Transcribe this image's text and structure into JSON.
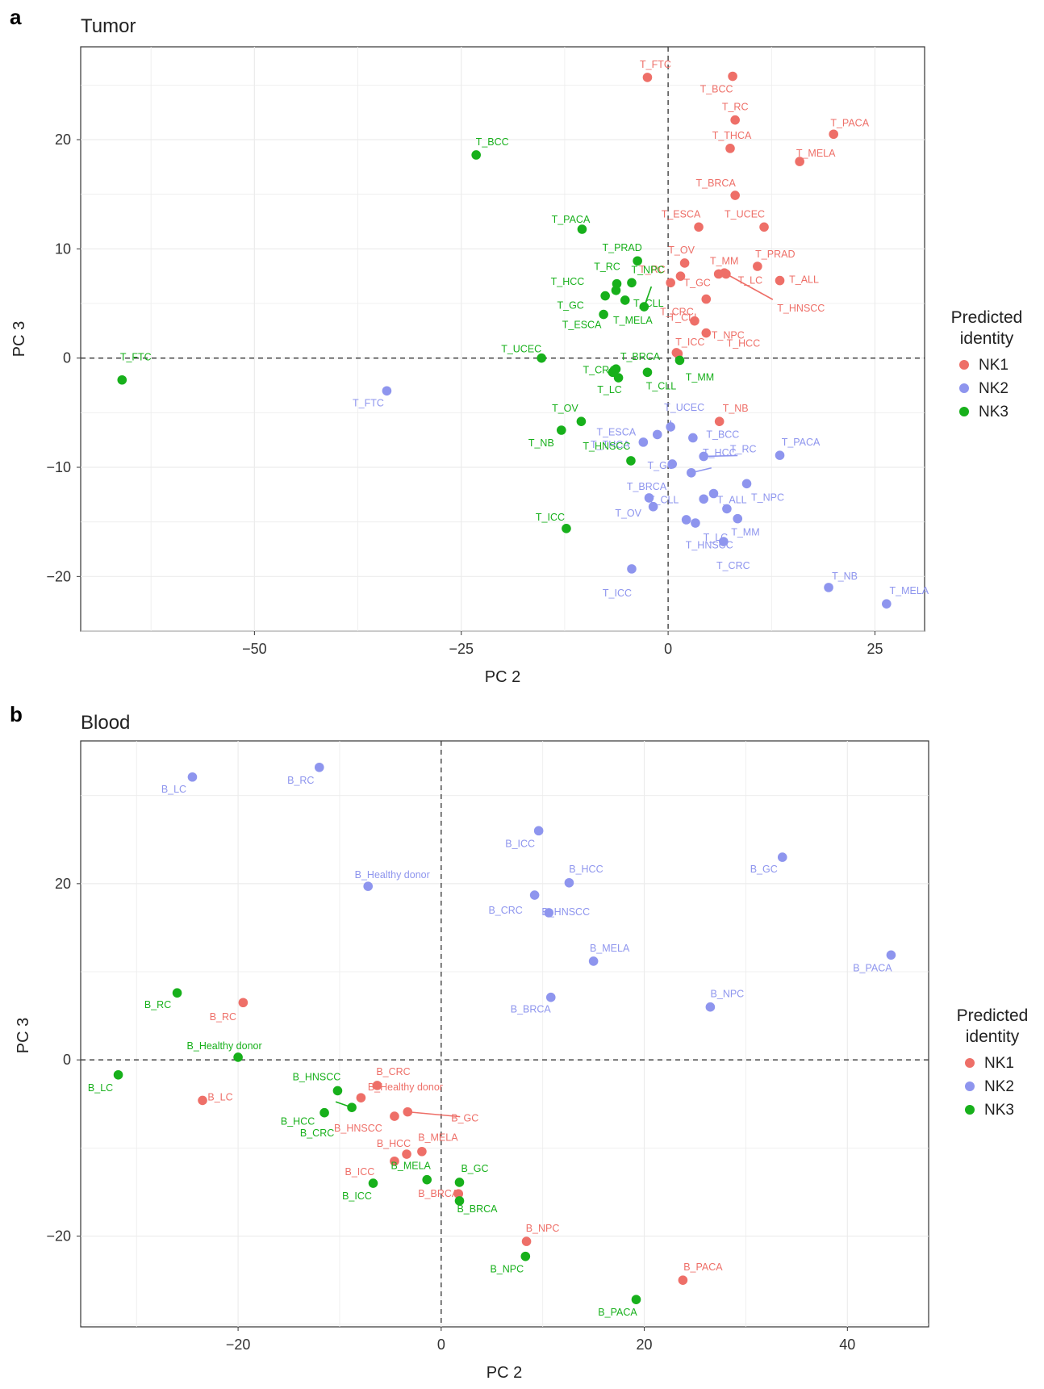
{
  "colors": {
    "NK1": "#ee6f68",
    "NK2": "#8e95ee",
    "NK3": "#17b01b"
  },
  "legend": {
    "title_line1": "Predicted",
    "title_line2": "identity",
    "entries": [
      "NK1",
      "NK2",
      "NK3"
    ]
  },
  "chart_data": [
    {
      "panel_letter": "a",
      "title": "Tumor",
      "type": "scatter",
      "xlabel": "PC 2",
      "ylabel": "PC 3",
      "xlim": [
        -71,
        31
      ],
      "ylim": [
        -25,
        28.5
      ],
      "xticks": [
        -50,
        -25,
        0,
        25
      ],
      "yticks": [
        -20,
        -10,
        0,
        10,
        20
      ],
      "xtick_labels": [
        "−50",
        "−25",
        "0",
        "25"
      ],
      "ytick_labels": [
        "−20",
        "−10",
        "0",
        "10",
        "20"
      ],
      "reference_lines": {
        "x": 0,
        "y": 0
      },
      "grid": true,
      "legend_position": "right",
      "points": [
        {
          "label": "T_FTC",
          "group": "NK1",
          "x": -2.5,
          "y": 25.7
        },
        {
          "label": "T_BCC",
          "group": "NK1",
          "x": 7.8,
          "y": 25.8
        },
        {
          "label": "T_RC",
          "group": "NK1",
          "x": 8.1,
          "y": 21.8
        },
        {
          "label": "T_PACA",
          "group": "NK1",
          "x": 20,
          "y": 20.5
        },
        {
          "label": "T_THCA",
          "group": "NK1",
          "x": 7.5,
          "y": 19.2
        },
        {
          "label": "T_MELA",
          "group": "NK1",
          "x": 15.9,
          "y": 18
        },
        {
          "label": "T_BRCA",
          "group": "NK1",
          "x": 8.1,
          "y": 14.9
        },
        {
          "label": "T_ESCA",
          "group": "NK1",
          "x": 3.7,
          "y": 12
        },
        {
          "label": "T_UCEC",
          "group": "NK1",
          "x": 11.6,
          "y": 12
        },
        {
          "label": "T_OV",
          "group": "NK1",
          "x": 2,
          "y": 8.7
        },
        {
          "label": "T_PRAD",
          "group": "NK1",
          "x": 10.8,
          "y": 8.4
        },
        {
          "label": "T_MM",
          "group": "NK1",
          "x": 6.1,
          "y": 7.7
        },
        {
          "label": "T_RC",
          "group": "NK1",
          "x": 1.5,
          "y": 7.5
        },
        {
          "label": "T_ALL",
          "group": "NK1",
          "x": 13.5,
          "y": 7.1
        },
        {
          "label": "T_LC",
          "group": "NK1",
          "x": 7,
          "y": 7.7
        },
        {
          "label": "T_GC",
          "group": "NK1",
          "x": 0.3,
          "y": 6.9
        },
        {
          "label": "T_HNSCC",
          "group": "NK1",
          "x": 6.8,
          "y": 7.8
        },
        {
          "label": "T_CLL",
          "group": "NK1",
          "x": 4.6,
          "y": 5.4
        },
        {
          "label": "T_CRC",
          "group": "NK1",
          "x": 3.2,
          "y": 3.4
        },
        {
          "label": "T_NPC",
          "group": "NK1",
          "x": 4.6,
          "y": 2.3
        },
        {
          "label": "T_ICC",
          "group": "NK1",
          "x": 1,
          "y": 0.5
        },
        {
          "label": "T_HCC",
          "group": "NK1",
          "x": 1.2,
          "y": 0.4
        },
        {
          "label": "T_NB",
          "group": "NK1",
          "x": 6.2,
          "y": -5.8
        },
        {
          "label": "T_FTC",
          "group": "NK2",
          "x": -34,
          "y": -3
        },
        {
          "label": "T_UCEC",
          "group": "NK2",
          "x": 0.3,
          "y": -6.3
        },
        {
          "label": "T_ESCA",
          "group": "NK2",
          "x": -1.3,
          "y": -7
        },
        {
          "label": "T_BCC",
          "group": "NK2",
          "x": 3,
          "y": -7.3
        },
        {
          "label": "T_THCA",
          "group": "NK2",
          "x": -3,
          "y": -7.7
        },
        {
          "label": "T_PACA",
          "group": "NK2",
          "x": 13.5,
          "y": -8.9
        },
        {
          "label": "T_RC",
          "group": "NK2",
          "x": 4.3,
          "y": -9
        },
        {
          "label": "T_GC",
          "group": "NK2",
          "x": 0.5,
          "y": -9.7
        },
        {
          "label": "T_HCC",
          "group": "NK2",
          "x": 2.8,
          "y": -10.5
        },
        {
          "label": "T_NPC",
          "group": "NK2",
          "x": 9.5,
          "y": -11.5
        },
        {
          "label": "T_BRCA",
          "group": "NK2",
          "x": -2.3,
          "y": -12.8
        },
        {
          "label": "T_HCC2",
          "group": "NK2",
          "x": 5.5,
          "y": -12.4
        },
        {
          "label": "T_ALL",
          "group": "NK2",
          "x": 4.3,
          "y": -12.9
        },
        {
          "label": "T_CLL",
          "group": "NK2",
          "x": -1.8,
          "y": -13.6
        },
        {
          "label": "T_MM",
          "group": "NK2",
          "x": 7.1,
          "y": -13.8
        },
        {
          "label": "T_OV",
          "group": "NK2",
          "x": 2.2,
          "y": -14.8
        },
        {
          "label": "T_LC",
          "group": "NK2",
          "x": 3.3,
          "y": -15.1
        },
        {
          "label": "T_HNSCC",
          "group": "NK2",
          "x": 8.4,
          "y": -14.7
        },
        {
          "label": "T_CRC",
          "group": "NK2",
          "x": 6.7,
          "y": -16.8
        },
        {
          "label": "T_ICC",
          "group": "NK2",
          "x": -4.4,
          "y": -19.3
        },
        {
          "label": "T_NB",
          "group": "NK2",
          "x": 19.4,
          "y": -21
        },
        {
          "label": "T_MELA",
          "group": "NK2",
          "x": 26.4,
          "y": -22.5
        },
        {
          "label": "T_BCC",
          "group": "NK3",
          "x": -23.2,
          "y": 18.6
        },
        {
          "label": "T_PACA",
          "group": "NK3",
          "x": -10.4,
          "y": 11.8
        },
        {
          "label": "T_PRAD",
          "group": "NK3",
          "x": -3.7,
          "y": 8.9
        },
        {
          "label": "T_NPC",
          "group": "NK3",
          "x": -4.4,
          "y": 6.9
        },
        {
          "label": "T_HCC",
          "group": "NK3",
          "x": -6.3,
          "y": 6.2
        },
        {
          "label": "T_RC",
          "group": "NK3",
          "x": -6.2,
          "y": 6.8
        },
        {
          "label": "T_GC",
          "group": "NK3",
          "x": -7.6,
          "y": 5.7
        },
        {
          "label": "T_CLL",
          "group": "NK3",
          "x": -5.2,
          "y": 5.3
        },
        {
          "label": "T_ESCA",
          "group": "NK3",
          "x": -7.8,
          "y": 4
        },
        {
          "label": "T_MELA",
          "group": "NK3",
          "x": -2.9,
          "y": 4.7
        },
        {
          "label": "T_UCEC",
          "group": "NK3",
          "x": -15.3,
          "y": 0
        },
        {
          "label": "T_BRCA",
          "group": "NK3",
          "x": -6.3,
          "y": -1
        },
        {
          "label": "T_CRC",
          "group": "NK3",
          "x": -6.7,
          "y": -1.3
        },
        {
          "label": "T_MM",
          "group": "NK3",
          "x": 1.4,
          "y": -0.2
        },
        {
          "label": "T_LC",
          "group": "NK3",
          "x": -6,
          "y": -1.8
        },
        {
          "label": "T_CLL",
          "group": "NK3",
          "x": -2.5,
          "y": -1.3
        },
        {
          "label": "T_FTC",
          "group": "NK3",
          "x": -66,
          "y": -2
        },
        {
          "label": "T_OV",
          "group": "NK3",
          "x": -10.5,
          "y": -5.8
        },
        {
          "label": "T_NB",
          "group": "NK3",
          "x": -12.9,
          "y": -6.6
        },
        {
          "label": "T_HNSCC",
          "group": "NK3",
          "x": -4.5,
          "y": -9.4
        },
        {
          "label": "T_ICC",
          "group": "NK3",
          "x": -12.3,
          "y": -15.6
        }
      ]
    },
    {
      "panel_letter": "b",
      "title": "Blood",
      "type": "scatter",
      "xlabel": "PC 2",
      "ylabel": "PC 3",
      "xlim": [
        -35.5,
        48
      ],
      "ylim": [
        -30.3,
        36.2
      ],
      "xticks": [
        -20,
        0,
        20,
        40
      ],
      "yticks": [
        -20,
        0,
        20
      ],
      "xtick_labels": [
        "−20",
        "0",
        "20",
        "40"
      ],
      "ytick_labels": [
        "−20",
        "0",
        "20"
      ],
      "reference_lines": {
        "x": 0,
        "y": 0
      },
      "grid": true,
      "legend_position": "right",
      "points": [
        {
          "label": "B_RC",
          "group": "NK1",
          "x": -19.5,
          "y": 6.5
        },
        {
          "label": "B_LC",
          "group": "NK1",
          "x": -23.5,
          "y": -4.6
        },
        {
          "label": "B_CRC",
          "group": "NK1",
          "x": -6.3,
          "y": -2.9
        },
        {
          "label": "B_Healthy donor",
          "group": "NK1",
          "x": -7.9,
          "y": -4.3
        },
        {
          "label": "B_HNSCC",
          "group": "NK1",
          "x": -4.6,
          "y": -6.4
        },
        {
          "label": "B_GC",
          "group": "NK1",
          "x": -3.3,
          "y": -5.9
        },
        {
          "label": "B_HCC",
          "group": "NK1",
          "x": -3.4,
          "y": -10.7
        },
        {
          "label": "B_MELA",
          "group": "NK1",
          "x": -1.9,
          "y": -10.4
        },
        {
          "label": "B_ICC",
          "group": "NK1",
          "x": -4.6,
          "y": -11.5
        },
        {
          "label": "B_BRCA",
          "group": "NK1",
          "x": 1.7,
          "y": -15.2
        },
        {
          "label": "B_NPC",
          "group": "NK1",
          "x": 8.4,
          "y": -20.6
        },
        {
          "label": "B_PACA",
          "group": "NK1",
          "x": 23.8,
          "y": -25
        },
        {
          "label": "B_LC",
          "group": "NK2",
          "x": -24.5,
          "y": 32.1
        },
        {
          "label": "B_RC",
          "group": "NK2",
          "x": -12,
          "y": 33.2
        },
        {
          "label": "B_ICC",
          "group": "NK2",
          "x": 9.6,
          "y": 26
        },
        {
          "label": "B_GC",
          "group": "NK2",
          "x": 33.6,
          "y": 23
        },
        {
          "label": "B_HCC",
          "group": "NK2",
          "x": 12.6,
          "y": 20.1
        },
        {
          "label": "B_Healthy donor",
          "group": "NK2",
          "x": -7.2,
          "y": 19.7
        },
        {
          "label": "B_CRC",
          "group": "NK2",
          "x": 9.2,
          "y": 18.7
        },
        {
          "label": "B_HNSCC",
          "group": "NK2",
          "x": 10.6,
          "y": 16.7
        },
        {
          "label": "B_MELA",
          "group": "NK2",
          "x": 15,
          "y": 11.2
        },
        {
          "label": "B_PACA",
          "group": "NK2",
          "x": 44.3,
          "y": 11.9
        },
        {
          "label": "B_BRCA",
          "group": "NK2",
          "x": 10.8,
          "y": 7.1
        },
        {
          "label": "B_NPC",
          "group": "NK2",
          "x": 26.5,
          "y": 6
        },
        {
          "label": "B_RC",
          "group": "NK3",
          "x": -26,
          "y": 7.6
        },
        {
          "label": "B_Healthy donor",
          "group": "NK3",
          "x": -20,
          "y": 0.3
        },
        {
          "label": "B_LC",
          "group": "NK3",
          "x": -31.8,
          "y": -1.7
        },
        {
          "label": "B_HNSCC",
          "group": "NK3",
          "x": -10.2,
          "y": -3.5
        },
        {
          "label": "B_HCC",
          "group": "NK3",
          "x": -11.5,
          "y": -6
        },
        {
          "label": "B_CRC",
          "group": "NK3",
          "x": -8.8,
          "y": -5.4
        },
        {
          "label": "B_MELA",
          "group": "NK3",
          "x": -1.4,
          "y": -13.6
        },
        {
          "label": "B_ICC",
          "group": "NK3",
          "x": -6.7,
          "y": -14
        },
        {
          "label": "B_GC",
          "group": "NK3",
          "x": 1.8,
          "y": -13.9
        },
        {
          "label": "B_BRCA",
          "group": "NK3",
          "x": 1.8,
          "y": -16
        },
        {
          "label": "B_NPC",
          "group": "NK3",
          "x": 8.3,
          "y": -22.3
        },
        {
          "label": "B_PACA",
          "group": "NK3",
          "x": 19.2,
          "y": -27.2
        }
      ]
    }
  ]
}
